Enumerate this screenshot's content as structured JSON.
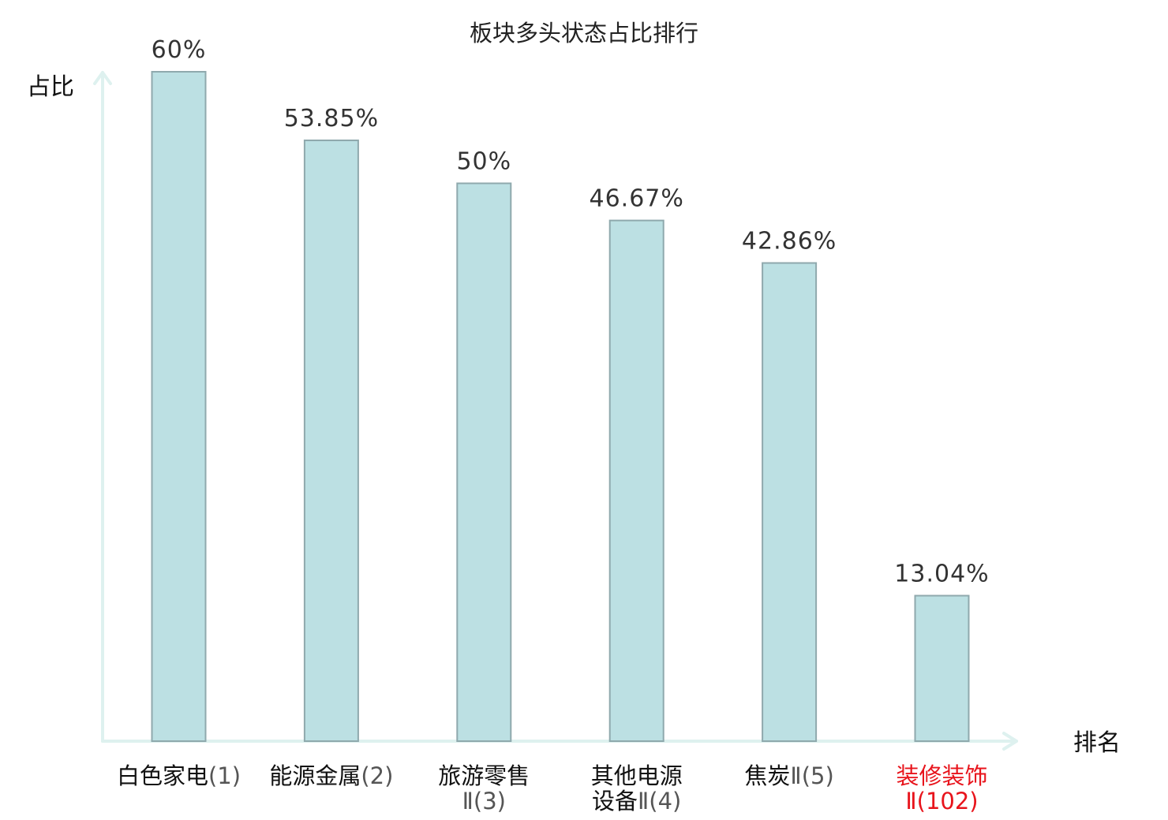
{
  "chart_data": {
    "type": "bar",
    "title": "板块多头状态占比排行",
    "xlabel": "排名",
    "ylabel": "占比",
    "categories": [
      [
        "白色家电",
        "(1)"
      ],
      [
        "能源金属",
        "(2)"
      ],
      [
        "旅游零售",
        "Ⅱ(3)"
      ],
      [
        "其他电源",
        "设备",
        "Ⅱ(4)"
      ],
      [
        "焦炭",
        "Ⅱ(5)"
      ],
      [
        "装修装饰",
        "Ⅱ(102)"
      ]
    ],
    "values": [
      60,
      53.85,
      50,
      46.67,
      42.86,
      13.04
    ],
    "value_labels": [
      "60%",
      "53.85%",
      "50%",
      "46.67%",
      "42.86%",
      "13.04%"
    ],
    "highlight_index": 5,
    "ylim": [
      0,
      60
    ],
    "grid": false,
    "colors": {
      "bar_fill": "#bce0e3",
      "bar_stroke": "#8fa9ad",
      "axis": "#def1ef",
      "highlight_text": "#e8141c",
      "value_text": "#333333",
      "label_text": "#111111"
    }
  }
}
